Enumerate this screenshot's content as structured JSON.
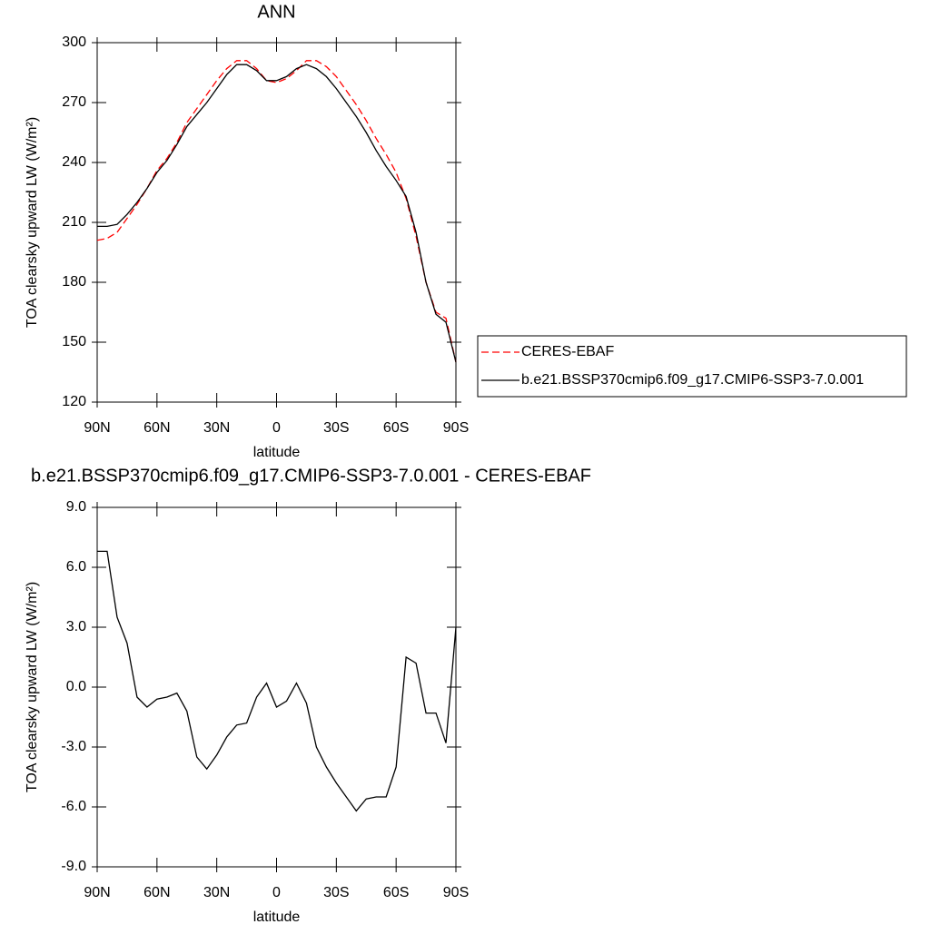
{
  "chart_data": [
    {
      "type": "line",
      "title": "ANN",
      "xlabel": "latitude",
      "ylabel": "TOA clearsky upward LW (W/m²)",
      "x": [
        90,
        85,
        80,
        75,
        70,
        65,
        60,
        55,
        50,
        45,
        40,
        35,
        30,
        25,
        20,
        15,
        10,
        5,
        0,
        -5,
        -10,
        -15,
        -20,
        -25,
        -30,
        -35,
        -40,
        -45,
        -50,
        -55,
        -60,
        -65,
        -70,
        -75,
        -80,
        -85,
        -90
      ],
      "xlim": [
        90,
        -90
      ],
      "xticks": [
        {
          "value": 90,
          "label": "90N"
        },
        {
          "value": 60,
          "label": "60N"
        },
        {
          "value": 30,
          "label": "30N"
        },
        0,
        {
          "value": -30,
          "label": "30S"
        },
        {
          "value": -60,
          "label": "60S"
        },
        {
          "value": -90,
          "label": "90S"
        }
      ],
      "ylim": [
        120,
        300
      ],
      "yticks": [
        120,
        150,
        180,
        210,
        240,
        270,
        300
      ],
      "legend": "right",
      "series": [
        {
          "name": "CERES-EBAF",
          "color": "#ff0000",
          "line_style": "dashed",
          "values": [
            201,
            202,
            205,
            212,
            219,
            227,
            236,
            242,
            250,
            260,
            267,
            274,
            281,
            287,
            291,
            291,
            287,
            281,
            280,
            282,
            286,
            291,
            291,
            288,
            283,
            276,
            269,
            261,
            252,
            244,
            235,
            222,
            203,
            180,
            165,
            162,
            140
          ]
        },
        {
          "name": "b.e21.BSSP370cmip6.f09_g17.CMIP6-SSP3-7.0.001",
          "color": "#000000",
          "line_style": "solid",
          "values": [
            208,
            208,
            209,
            214,
            220,
            227,
            235,
            241,
            249,
            258,
            264,
            270,
            277,
            284,
            289,
            289,
            286,
            281,
            281,
            283,
            287,
            289,
            287,
            283,
            277,
            270,
            263,
            255,
            246,
            238,
            231,
            223,
            205,
            180,
            164,
            160,
            140
          ]
        }
      ]
    },
    {
      "type": "line",
      "title": "b.e21.BSSP370cmip6.f09_g17.CMIP6-SSP3-7.0.001 - CERES-EBAF",
      "xlabel": "latitude",
      "ylabel": "TOA clearsky upward LW (W/m²)",
      "x": [
        90,
        85,
        80,
        75,
        70,
        65,
        60,
        55,
        50,
        45,
        40,
        35,
        30,
        25,
        20,
        15,
        10,
        5,
        0,
        -5,
        -10,
        -15,
        -20,
        -25,
        -30,
        -35,
        -40,
        -45,
        -50,
        -55,
        -60,
        -65,
        -70,
        -75,
        -80,
        -85,
        -90
      ],
      "xlim": [
        90,
        -90
      ],
      "xticks": [
        {
          "value": 90,
          "label": "90N"
        },
        {
          "value": 60,
          "label": "60N"
        },
        {
          "value": 30,
          "label": "30N"
        },
        0,
        {
          "value": -30,
          "label": "30S"
        },
        {
          "value": -60,
          "label": "60S"
        },
        {
          "value": -90,
          "label": "90S"
        }
      ],
      "ylim": [
        -9,
        9
      ],
      "yticks": [
        {
          "value": -9,
          "label": "-9.0"
        },
        {
          "value": -6,
          "label": "-6.0"
        },
        {
          "value": -3,
          "label": "-3.0"
        },
        {
          "value": 0,
          "label": "0.0"
        },
        {
          "value": 3,
          "label": "3.0"
        },
        {
          "value": 6,
          "label": "6.0"
        },
        {
          "value": 9,
          "label": "9.0"
        }
      ],
      "color": "#000000",
      "values": [
        6.8,
        6.8,
        3.5,
        2.2,
        -0.5,
        -1.0,
        -0.6,
        -0.5,
        -0.3,
        -1.2,
        -3.5,
        -4.1,
        -3.4,
        -2.5,
        -1.9,
        -1.8,
        -0.5,
        0.2,
        -1.0,
        -0.7,
        0.2,
        -0.8,
        -3.0,
        -4.0,
        -4.8,
        -5.5,
        -6.2,
        -5.6,
        -5.5,
        -5.5,
        -4.0,
        1.5,
        1.2,
        -1.3,
        -1.3,
        -2.8,
        3.0
      ]
    }
  ]
}
